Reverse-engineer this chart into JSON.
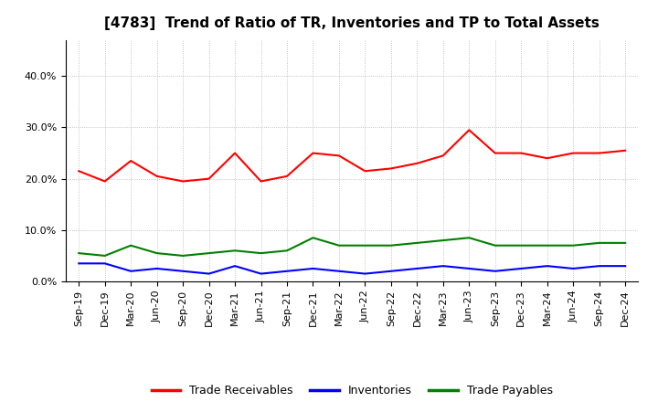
{
  "title": "[4783]  Trend of Ratio of TR, Inventories and TP to Total Assets",
  "x_labels": [
    "Sep-19",
    "Dec-19",
    "Mar-20",
    "Jun-20",
    "Sep-20",
    "Dec-20",
    "Mar-21",
    "Jun-21",
    "Sep-21",
    "Dec-21",
    "Mar-22",
    "Jun-22",
    "Sep-22",
    "Dec-22",
    "Mar-23",
    "Jun-23",
    "Sep-23",
    "Dec-23",
    "Mar-24",
    "Jun-24",
    "Sep-24",
    "Dec-24"
  ],
  "trade_receivables": [
    21.5,
    19.5,
    23.5,
    20.5,
    19.5,
    20.0,
    25.0,
    19.5,
    20.5,
    25.0,
    24.5,
    21.5,
    22.0,
    23.0,
    24.5,
    29.5,
    25.0,
    25.0,
    24.0,
    25.0,
    25.0,
    25.5
  ],
  "inventories": [
    3.5,
    3.5,
    2.0,
    2.5,
    2.0,
    1.5,
    3.0,
    1.5,
    2.0,
    2.5,
    2.0,
    1.5,
    2.0,
    2.5,
    3.0,
    2.5,
    2.0,
    2.5,
    3.0,
    2.5,
    3.0,
    3.0
  ],
  "trade_payables": [
    5.5,
    5.0,
    7.0,
    5.5,
    5.0,
    5.5,
    6.0,
    5.5,
    6.0,
    8.5,
    7.0,
    7.0,
    7.0,
    7.5,
    8.0,
    8.5,
    7.0,
    7.0,
    7.0,
    7.0,
    7.5,
    7.5
  ],
  "tr_color": "#FF0000",
  "inv_color": "#0000FF",
  "tp_color": "#008000",
  "ylim": [
    0,
    47
  ],
  "yticks": [
    0,
    10,
    20,
    30,
    40
  ],
  "legend_labels": [
    "Trade Receivables",
    "Inventories",
    "Trade Payables"
  ],
  "background_color": "#FFFFFF",
  "grid_color": "#AAAAAA",
  "title_fontsize": 11,
  "tick_fontsize": 8,
  "legend_fontsize": 9
}
